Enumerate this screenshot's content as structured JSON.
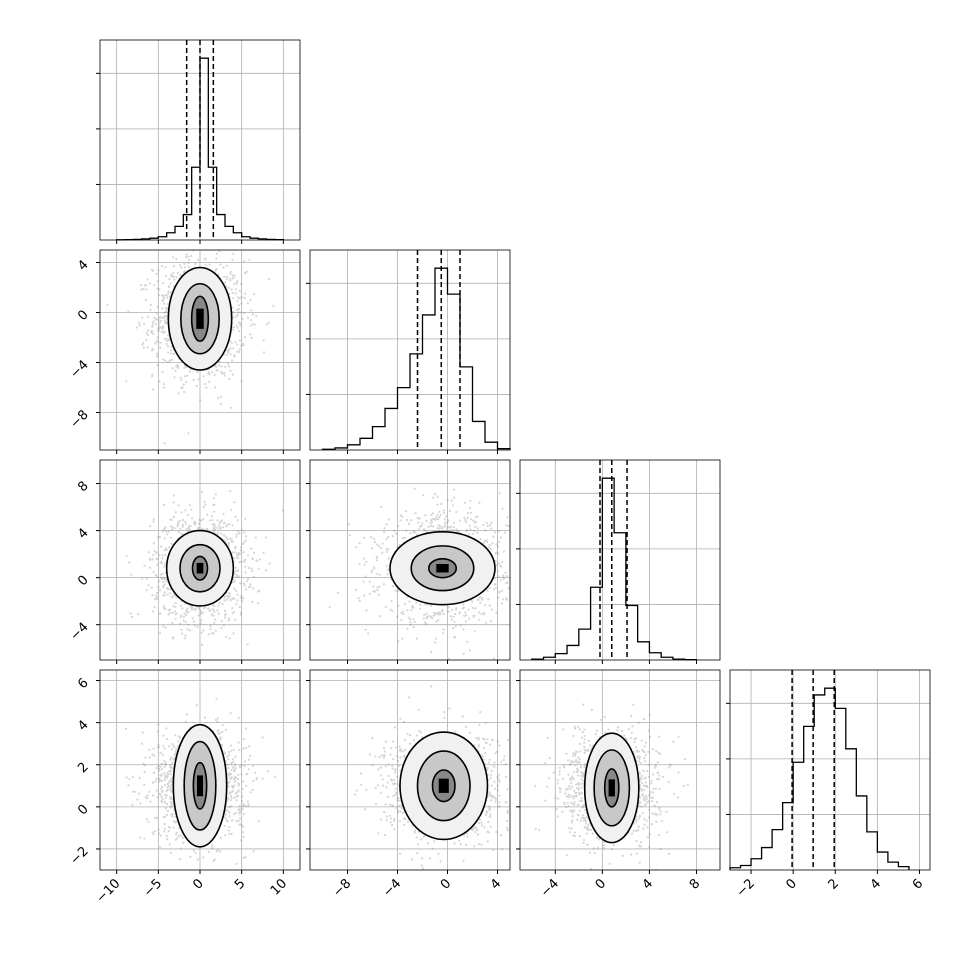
{
  "chart_data": {
    "type": "corner",
    "n_params": 4,
    "grid": true,
    "colors": {
      "line": "#000000",
      "grid": "#b0b0b0",
      "points": "#888888"
    },
    "x_tick_labels": [
      [
        "−10",
        "−5",
        "0",
        "5",
        "10"
      ],
      [
        "−8",
        "−4",
        "0",
        "4"
      ],
      [
        "−4",
        "0",
        "4",
        "8"
      ],
      [
        "−2",
        "0",
        "2",
        "4",
        "6"
      ]
    ],
    "y_tick_labels": {
      "row1": [
        "4",
        "0",
        "−4",
        "−8"
      ],
      "row2": [
        "8",
        "4",
        "0",
        "−4"
      ],
      "row3": [
        "6",
        "4",
        "2",
        "0",
        "−2"
      ]
    },
    "params": [
      {
        "xlim": [
          -12,
          12
        ],
        "xticks": [
          -10,
          -5,
          0,
          5,
          10
        ],
        "quantiles": [
          -1.6,
          0.0,
          1.6
        ],
        "hist_edges": [
          -10,
          -9,
          -8,
          -7,
          -6,
          -5,
          -4,
          -3,
          -2,
          -1,
          0,
          1,
          2,
          3,
          4,
          5,
          6,
          7,
          8,
          9,
          10
        ],
        "hist_counts": [
          1,
          2,
          3,
          6,
          10,
          18,
          40,
          75,
          140,
          400,
          1000,
          400,
          140,
          75,
          40,
          18,
          10,
          6,
          3,
          2
        ]
      },
      {
        "xlim": [
          -11,
          5
        ],
        "xticks": [
          -8,
          -4,
          0,
          4
        ],
        "quantiles": [
          -2.4,
          -0.5,
          1.0
        ],
        "hist_edges": [
          -10,
          -9,
          -8,
          -7,
          -6,
          -5,
          -4,
          -3,
          -2,
          -1,
          0,
          1,
          2,
          3,
          4,
          5
        ],
        "hist_counts": [
          3,
          8,
          20,
          45,
          90,
          160,
          240,
          370,
          520,
          700,
          600,
          320,
          110,
          30,
          5
        ]
      },
      {
        "xlim": [
          -7,
          10
        ],
        "xticks": [
          -4,
          0,
          4,
          8
        ],
        "quantiles": [
          -0.2,
          0.8,
          2.1
        ],
        "hist_edges": [
          -6,
          -5,
          -4,
          -3,
          -2,
          -1,
          0,
          1,
          2,
          3,
          4,
          5,
          6,
          7,
          8
        ],
        "hist_counts": [
          5,
          15,
          35,
          80,
          170,
          400,
          1000,
          700,
          300,
          100,
          40,
          15,
          5,
          2
        ]
      },
      {
        "xlim": [
          -3,
          6.5
        ],
        "xticks": [
          -2,
          0,
          2,
          4,
          6
        ],
        "quantiles": [
          -0.05,
          0.95,
          1.95
        ],
        "hist_edges": [
          -3.0,
          -2.5,
          -2.0,
          -1.5,
          -1.0,
          -0.5,
          0.0,
          0.5,
          1.0,
          1.5,
          2.0,
          2.5,
          3.0,
          3.5,
          4.0,
          4.5,
          5.0,
          5.5
        ],
        "hist_counts": [
          10,
          20,
          50,
          100,
          180,
          300,
          480,
          640,
          780,
          810,
          720,
          540,
          330,
          170,
          80,
          35,
          15
        ]
      }
    ],
    "pair_panels": [
      {
        "row": 1,
        "col": 0,
        "ylim": [
          -11,
          5
        ],
        "yticks": [
          4,
          0,
          -4,
          -8
        ],
        "center": [
          0,
          -0.5
        ],
        "sigma": [
          2.2,
          1.9
        ],
        "contours": [
          [
            1.0,
            1.8
          ],
          [
            2.3,
            2.8
          ],
          [
            3.8,
            4.1
          ]
        ]
      },
      {
        "row": 2,
        "col": 0,
        "ylim": [
          -7,
          10
        ],
        "yticks": [
          8,
          4,
          0,
          -4
        ],
        "center": [
          0,
          0.8
        ],
        "sigma": [
          2.2,
          1.8
        ],
        "contours": [
          [
            0.9,
            1.0
          ],
          [
            2.4,
            2.0
          ],
          [
            4.0,
            3.2
          ]
        ]
      },
      {
        "row": 2,
        "col": 1,
        "ylim": [
          -7,
          10
        ],
        "yticks": [
          8,
          4,
          0,
          -4
        ],
        "center": [
          -0.4,
          0.8
        ],
        "sigma": [
          2.0,
          1.8
        ],
        "contours": [
          [
            1.1,
            0.8
          ],
          [
            2.5,
            1.9
          ],
          [
            4.2,
            3.1
          ]
        ]
      },
      {
        "row": 3,
        "col": 0,
        "ylim": [
          -3,
          6.5
        ],
        "yticks": [
          6,
          4,
          2,
          0,
          -2
        ],
        "center": [
          0,
          1.0
        ],
        "sigma": [
          2.2,
          1.0
        ],
        "contours": [
          [
            0.8,
            1.1
          ],
          [
            1.9,
            2.1
          ],
          [
            3.2,
            2.9
          ]
        ]
      },
      {
        "row": 3,
        "col": 1,
        "ylim": [
          -3,
          6.5
        ],
        "yticks": [
          6,
          4,
          2,
          0,
          -2
        ],
        "center": [
          -0.3,
          1.0
        ],
        "sigma": [
          1.9,
          1.0
        ],
        "contours": [
          [
            0.9,
            0.75
          ],
          [
            2.1,
            1.65
          ],
          [
            3.5,
            2.55
          ]
        ]
      },
      {
        "row": 3,
        "col": 2,
        "ylim": [
          -3,
          6.5
        ],
        "yticks": [
          6,
          4,
          2,
          0,
          -2
        ],
        "center": [
          0.8,
          0.9
        ],
        "sigma": [
          1.6,
          1.0
        ],
        "contours": [
          [
            0.6,
            0.9
          ],
          [
            1.5,
            1.8
          ],
          [
            2.3,
            2.6
          ]
        ]
      }
    ]
  }
}
